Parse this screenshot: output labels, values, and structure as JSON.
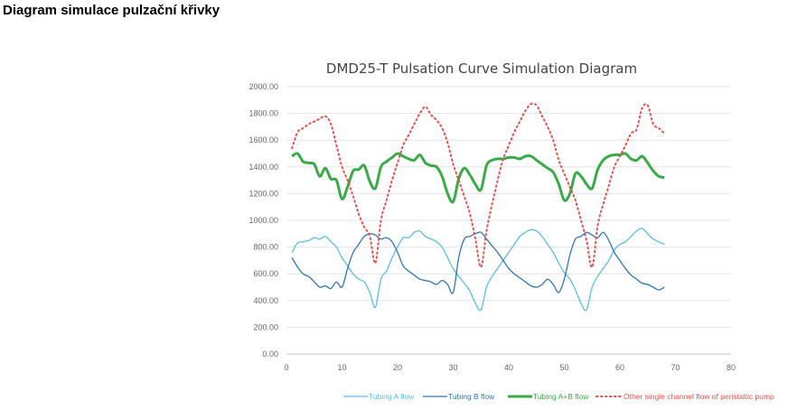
{
  "heading": "Diagram simulace pulzační křivky",
  "chart_data": {
    "type": "line",
    "title": "DMD25-T Pulsation Curve Simulation Diagram",
    "xlabel": "",
    "ylabel": "",
    "xlim": [
      0,
      80
    ],
    "ylim": [
      0,
      2000
    ],
    "x_ticks": [
      "0",
      "10",
      "20",
      "30",
      "40",
      "50",
      "60",
      "70",
      "80"
    ],
    "y_ticks": [
      "0.00",
      "200.00",
      "400.00",
      "600.00",
      "800.00",
      "1000.00",
      "1200.00",
      "1400.00",
      "1600.00",
      "1800.00",
      "2000.00"
    ],
    "grid": "horizontal",
    "legend_position": "bottom",
    "series": [
      {
        "name": "Tubing A flow",
        "color": "#5bbce4",
        "style": "solid",
        "x": [
          1,
          2,
          3,
          4,
          5,
          6,
          7,
          8,
          9,
          10,
          11,
          12,
          13,
          14,
          15,
          16,
          17,
          18,
          19,
          20,
          21,
          22,
          23,
          24,
          25,
          26,
          27,
          28,
          29,
          30,
          31,
          32,
          33,
          34,
          35,
          36,
          37,
          38,
          39,
          40,
          41,
          42,
          43,
          44,
          45,
          46,
          47,
          48,
          49,
          50,
          51,
          52,
          53,
          54,
          55,
          56,
          57,
          58,
          59,
          60,
          61,
          62,
          63,
          64,
          65,
          66,
          67,
          68
        ],
        "y": [
          760,
          830,
          840,
          850,
          870,
          860,
          880,
          840,
          800,
          720,
          660,
          600,
          560,
          540,
          460,
          350,
          560,
          620,
          720,
          800,
          870,
          870,
          910,
          920,
          880,
          860,
          840,
          800,
          720,
          640,
          580,
          530,
          470,
          380,
          330,
          500,
          580,
          640,
          700,
          760,
          820,
          880,
          910,
          930,
          920,
          880,
          820,
          760,
          680,
          610,
          560,
          480,
          380,
          330,
          500,
          580,
          640,
          700,
          780,
          820,
          840,
          880,
          920,
          940,
          900,
          860,
          840,
          820
        ]
      },
      {
        "name": "Tubing B flow",
        "color": "#2e75b6",
        "style": "solid",
        "x": [
          1,
          2,
          3,
          4,
          5,
          6,
          7,
          8,
          9,
          10,
          11,
          12,
          13,
          14,
          15,
          16,
          17,
          18,
          19,
          20,
          21,
          22,
          23,
          24,
          25,
          26,
          27,
          28,
          29,
          30,
          31,
          32,
          33,
          34,
          35,
          36,
          37,
          38,
          39,
          40,
          41,
          42,
          43,
          44,
          45,
          46,
          47,
          48,
          49,
          50,
          51,
          52,
          53,
          54,
          55,
          56,
          57,
          58,
          59,
          60,
          61,
          62,
          63,
          64,
          65,
          66,
          67,
          68
        ],
        "y": [
          720,
          650,
          600,
          580,
          540,
          500,
          510,
          490,
          540,
          500,
          640,
          760,
          820,
          880,
          900,
          890,
          860,
          870,
          840,
          760,
          660,
          620,
          590,
          560,
          550,
          540,
          520,
          550,
          520,
          460,
          720,
          860,
          880,
          900,
          910,
          860,
          810,
          760,
          700,
          640,
          600,
          570,
          540,
          510,
          500,
          520,
          560,
          520,
          460,
          560,
          740,
          860,
          880,
          910,
          890,
          870,
          910,
          850,
          760,
          700,
          640,
          590,
          560,
          530,
          520,
          500,
          480,
          500
        ]
      },
      {
        "name": "Tubing A+B flow",
        "color": "#3aaa48",
        "style": "thick",
        "x": [
          1,
          2,
          3,
          4,
          5,
          6,
          7,
          8,
          9,
          10,
          11,
          12,
          13,
          14,
          15,
          16,
          17,
          18,
          19,
          20,
          21,
          22,
          23,
          24,
          25,
          26,
          27,
          28,
          29,
          30,
          31,
          32,
          33,
          34,
          35,
          36,
          37,
          38,
          39,
          40,
          41,
          42,
          43,
          44,
          45,
          46,
          47,
          48,
          49,
          50,
          51,
          52,
          53,
          54,
          55,
          56,
          57,
          58,
          59,
          60,
          61,
          62,
          63,
          64,
          65,
          66,
          67,
          68
        ],
        "y": [
          1480,
          1500,
          1440,
          1430,
          1420,
          1330,
          1390,
          1310,
          1300,
          1160,
          1250,
          1370,
          1380,
          1410,
          1290,
          1240,
          1400,
          1440,
          1470,
          1500,
          1480,
          1460,
          1450,
          1490,
          1430,
          1410,
          1400,
          1330,
          1200,
          1140,
          1310,
          1390,
          1340,
          1270,
          1230,
          1410,
          1450,
          1460,
          1460,
          1470,
          1470,
          1460,
          1480,
          1480,
          1450,
          1420,
          1390,
          1360,
          1270,
          1150,
          1200,
          1350,
          1330,
          1270,
          1240,
          1380,
          1450,
          1480,
          1490,
          1490,
          1500,
          1460,
          1450,
          1480,
          1430,
          1370,
          1330,
          1320
        ]
      },
      {
        "name": "Other single channel flow of peristaltic pump",
        "color": "#e8504a",
        "style": "dotted",
        "x": [
          1,
          2,
          3,
          4,
          5,
          6,
          7,
          8,
          9,
          10,
          11,
          12,
          13,
          14,
          15,
          16,
          17,
          18,
          19,
          20,
          21,
          22,
          23,
          24,
          25,
          26,
          27,
          28,
          29,
          30,
          31,
          32,
          33,
          34,
          35,
          36,
          37,
          38,
          39,
          40,
          41,
          42,
          43,
          44,
          45,
          46,
          47,
          48,
          49,
          50,
          51,
          52,
          53,
          54,
          55,
          56,
          57,
          58,
          59,
          60,
          61,
          62,
          63,
          64,
          65,
          66,
          67,
          68
        ],
        "y": [
          1540,
          1660,
          1690,
          1720,
          1740,
          1760,
          1780,
          1720,
          1560,
          1400,
          1300,
          1180,
          1050,
          950,
          880,
          680,
          1000,
          1150,
          1300,
          1430,
          1560,
          1640,
          1720,
          1800,
          1850,
          1790,
          1750,
          1690,
          1580,
          1420,
          1300,
          1180,
          1050,
          860,
          650,
          920,
          1120,
          1300,
          1460,
          1560,
          1660,
          1740,
          1820,
          1870,
          1860,
          1780,
          1700,
          1600,
          1450,
          1350,
          1250,
          1150,
          1000,
          850,
          650,
          960,
          1120,
          1260,
          1400,
          1480,
          1560,
          1650,
          1680,
          1840,
          1860,
          1720,
          1690,
          1650
        ]
      }
    ]
  }
}
